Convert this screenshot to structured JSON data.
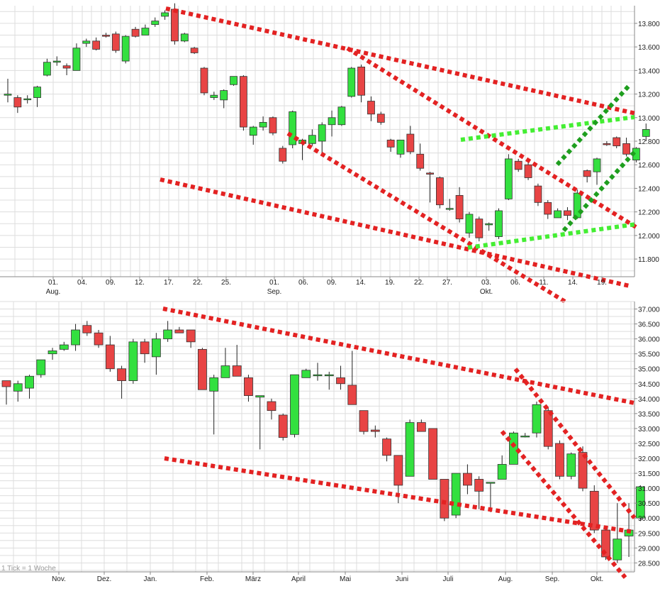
{
  "chart_data": [
    {
      "type": "candlestick",
      "title": "",
      "interval": "daily",
      "ylim": [
        11650,
        13950
      ],
      "y_ticks": [
        11800,
        12000,
        12200,
        12400,
        12600,
        12800,
        13000,
        13200,
        13400,
        13600,
        13800
      ],
      "y_tick_labels": [
        "11.800",
        "12.000",
        "12.200",
        "12.400",
        "12.600",
        "12.800",
        "13.000",
        "13.200",
        "13.400",
        "13.600",
        "13.800"
      ],
      "x_tick_labels": [
        {
          "label": "01.",
          "sub": "Aug."
        },
        {
          "label": "04."
        },
        {
          "label": "09."
        },
        {
          "label": "12."
        },
        {
          "label": "17."
        },
        {
          "label": "22."
        },
        {
          "label": "25."
        },
        {
          "label": "01.",
          "sub": "Sep."
        },
        {
          "label": "06."
        },
        {
          "label": "09."
        },
        {
          "label": "14."
        },
        {
          "label": "19."
        },
        {
          "label": "22."
        },
        {
          "label": "27."
        },
        {
          "label": "03.",
          "sub": "Okt."
        },
        {
          "label": "06."
        },
        {
          "label": "11."
        },
        {
          "label": "14."
        },
        {
          "label": "19."
        }
      ],
      "candles": [
        [
          13190,
          13200,
          13130,
          13330
        ],
        [
          13170,
          13090,
          13040,
          13190
        ],
        [
          13160,
          13160,
          13120,
          13190
        ],
        [
          13170,
          13260,
          13090,
          13270
        ],
        [
          13360,
          13470,
          13350,
          13500
        ],
        [
          13470,
          13480,
          13440,
          13520
        ],
        [
          13440,
          13420,
          13360,
          13460
        ],
        [
          13400,
          13590,
          13400,
          13630
        ],
        [
          13630,
          13650,
          13600,
          13670
        ],
        [
          13650,
          13580,
          13570,
          13680
        ],
        [
          13700,
          13690,
          13680,
          13720
        ],
        [
          13710,
          13570,
          13550,
          13730
        ],
        [
          13480,
          13690,
          13460,
          13700
        ],
        [
          13750,
          13690,
          13680,
          13770
        ],
        [
          13700,
          13760,
          13700,
          13790
        ],
        [
          13790,
          13820,
          13770,
          13850
        ],
        [
          13860,
          13890,
          13830,
          13910
        ],
        [
          13920,
          13650,
          13620,
          13970
        ],
        [
          13650,
          13710,
          13640,
          13720
        ],
        [
          13590,
          13550,
          13540,
          13600
        ],
        [
          13420,
          13210,
          13190,
          13430
        ],
        [
          13170,
          13190,
          13150,
          13220
        ],
        [
          13150,
          13230,
          13080,
          13240
        ],
        [
          13280,
          13350,
          13270,
          13350
        ],
        [
          13350,
          12920,
          12890,
          13360
        ],
        [
          12850,
          12920,
          12770,
          12930
        ],
        [
          12920,
          12960,
          12890,
          13010
        ],
        [
          13000,
          12870,
          12850,
          13010
        ],
        [
          12740,
          12630,
          12610,
          12760
        ],
        [
          12770,
          13050,
          12740,
          13060
        ],
        [
          12780,
          12810,
          12640,
          12820
        ],
        [
          12780,
          12850,
          12760,
          12900
        ],
        [
          12800,
          12940,
          12680,
          12960
        ],
        [
          12940,
          13000,
          12840,
          13060
        ],
        [
          12940,
          13090,
          12930,
          13100
        ],
        [
          13180,
          13420,
          13170,
          13430
        ],
        [
          13430,
          13190,
          13130,
          13450
        ],
        [
          13140,
          13030,
          12970,
          13180
        ],
        [
          13030,
          12960,
          12940,
          13050
        ],
        [
          12810,
          12750,
          12710,
          12820
        ],
        [
          12690,
          12810,
          12660,
          12810
        ],
        [
          12860,
          12710,
          12690,
          12930
        ],
        [
          12690,
          12570,
          12550,
          12780
        ],
        [
          12530,
          12520,
          12280,
          12540
        ],
        [
          12490,
          12260,
          12230,
          12500
        ],
        [
          12230,
          12230,
          12210,
          12310
        ],
        [
          12340,
          12140,
          12110,
          12410
        ],
        [
          12020,
          12180,
          11980,
          12200
        ],
        [
          12140,
          11980,
          11950,
          12160
        ],
        [
          12090,
          12100,
          12040,
          12110
        ],
        [
          11990,
          12210,
          11970,
          12230
        ],
        [
          12310,
          12650,
          12300,
          12690
        ],
        [
          12630,
          12560,
          12540,
          12650
        ],
        [
          12600,
          12490,
          12470,
          12620
        ],
        [
          12420,
          12280,
          12250,
          12440
        ],
        [
          12280,
          12180,
          12140,
          12300
        ],
        [
          12150,
          12210,
          12150,
          12230
        ],
        [
          12210,
          12170,
          12130,
          12240
        ],
        [
          12150,
          12360,
          12140,
          12390
        ],
        [
          12550,
          12500,
          12450,
          12560
        ],
        [
          12540,
          12650,
          12430,
          12660
        ],
        [
          12780,
          12770,
          12760,
          12800
        ],
        [
          12830,
          12760,
          12740,
          12840
        ],
        [
          12780,
          12690,
          12670,
          12830
        ],
        [
          12640,
          12740,
          12620,
          12750
        ],
        [
          12840,
          12900,
          12800,
          12950
        ]
      ]
    },
    {
      "type": "candlestick",
      "title": "",
      "interval": "weekly",
      "footnote": "1 Tick = 1 Woche",
      "ylim": [
        28200,
        37250
      ],
      "y_ticks": [
        28500,
        29000,
        29500,
        30000,
        30500,
        31000,
        31500,
        32000,
        32500,
        33000,
        33500,
        34000,
        34500,
        35000,
        35500,
        36000,
        36500,
        37000
      ],
      "y_tick_labels": [
        "28.500",
        "29.000",
        "29.500",
        "30.000",
        "30.500",
        "31.000",
        "31.500",
        "32.000",
        "32.500",
        "33.000",
        "33.500",
        "34.000",
        "34.500",
        "35.000",
        "35.500",
        "36.000",
        "36.500",
        "37.000"
      ],
      "x_tick_labels": [
        "Nov.",
        "Dez.",
        "Jan.",
        "Feb.",
        "März",
        "April",
        "Mai",
        "Juni",
        "Juli",
        "Aug.",
        "Sep.",
        "Okt."
      ],
      "candles": [
        [
          34600,
          34400,
          33800,
          34600
        ],
        [
          34250,
          34500,
          33900,
          34600
        ],
        [
          34350,
          34750,
          34000,
          34800
        ],
        [
          34800,
          35300,
          34700,
          35300
        ],
        [
          35500,
          35600,
          35300,
          35700
        ],
        [
          35650,
          35800,
          35600,
          35900
        ],
        [
          35800,
          36300,
          35600,
          36500
        ],
        [
          36450,
          36200,
          36100,
          36600
        ],
        [
          36200,
          35800,
          35700,
          36300
        ],
        [
          35800,
          35000,
          34900,
          36100
        ],
        [
          35000,
          34600,
          34000,
          35100
        ],
        [
          34600,
          35900,
          34500,
          36000
        ],
        [
          35900,
          35500,
          35200,
          36000
        ],
        [
          35400,
          36000,
          34800,
          36200
        ],
        [
          36000,
          36300,
          35900,
          36600
        ],
        [
          36300,
          36200,
          36200,
          36400
        ],
        [
          36300,
          35900,
          35700,
          36300
        ],
        [
          35650,
          34300,
          34300,
          35700
        ],
        [
          34250,
          34700,
          32800,
          34800
        ],
        [
          34700,
          35100,
          34700,
          35700
        ],
        [
          35100,
          34750,
          34750,
          35800
        ],
        [
          34700,
          34100,
          33900,
          34800
        ],
        [
          34050,
          34100,
          32300,
          34100
        ],
        [
          33900,
          33600,
          33300,
          34000
        ],
        [
          33450,
          32700,
          32600,
          33500
        ],
        [
          32800,
          34800,
          32700,
          34800
        ],
        [
          34700,
          34950,
          34700,
          35000
        ],
        [
          34800,
          34800,
          34600,
          35200
        ],
        [
          34800,
          34800,
          34300,
          34900
        ],
        [
          34700,
          34500,
          34300,
          35100
        ],
        [
          34450,
          33800,
          33800,
          35600
        ],
        [
          33600,
          32900,
          32800,
          33600
        ],
        [
          32950,
          32900,
          32700,
          33100
        ],
        [
          32650,
          32100,
          31900,
          32700
        ],
        [
          32100,
          31100,
          30500,
          32100
        ],
        [
          31400,
          33200,
          31400,
          33300
        ],
        [
          33200,
          32900,
          32900,
          33300
        ],
        [
          33000,
          31300,
          31300,
          33000
        ],
        [
          31300,
          30000,
          29900,
          31300
        ],
        [
          30100,
          31500,
          30000,
          31500
        ],
        [
          31500,
          31100,
          30800,
          31800
        ],
        [
          31300,
          30900,
          30300,
          31400
        ],
        [
          31200,
          31200,
          30200,
          31200
        ],
        [
          31300,
          31800,
          31300,
          32100
        ],
        [
          31800,
          32850,
          31800,
          32900
        ],
        [
          32750,
          32750,
          32700,
          32850
        ],
        [
          32850,
          33800,
          32700,
          33900
        ],
        [
          33600,
          32400,
          32300,
          33700
        ],
        [
          32500,
          31400,
          31300,
          32600
        ],
        [
          31400,
          32150,
          31300,
          32200
        ],
        [
          32200,
          31000,
          30900,
          32400
        ],
        [
          30900,
          29600,
          29500,
          31100
        ],
        [
          29600,
          28700,
          28600,
          29700
        ],
        [
          28600,
          29300,
          28500,
          30500
        ],
        [
          29400,
          29600,
          28700,
          30500
        ],
        [
          30000,
          31050,
          29900,
          31100
        ]
      ]
    }
  ],
  "colors": {
    "up": "#33e03f",
    "down": "#e84444",
    "wick": "#222222",
    "grid": "#dddddd",
    "trend_red": "#e32222",
    "trend_light_green": "#44ee33",
    "trend_dark_green": "#1e9e1e"
  }
}
